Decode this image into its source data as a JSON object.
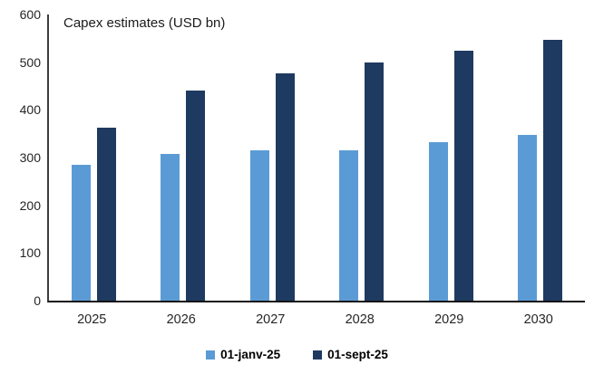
{
  "chart_data": {
    "type": "bar",
    "title": "Capex estimates (USD bn)",
    "categories": [
      "2025",
      "2026",
      "2027",
      "2028",
      "2029",
      "2030"
    ],
    "series": [
      {
        "name": "01-janv-25",
        "color": "#5B9BD5",
        "values": [
          285,
          307,
          316,
          316,
          332,
          348
        ]
      },
      {
        "name": "01-sept-25",
        "color": "#1F3A60",
        "values": [
          363,
          441,
          476,
          500,
          525,
          546
        ]
      }
    ],
    "ylim": [
      0,
      600
    ],
    "yticks": [
      0,
      100,
      200,
      300,
      400,
      500,
      600
    ],
    "xlabel": "",
    "ylabel": "",
    "grid": false,
    "legend_position": "bottom"
  },
  "colors": {
    "y_axis_line": "#3d3d3d",
    "x_axis_line": "#141414",
    "tick_text": "#262626",
    "legend_text": "#000000",
    "background": "#ffffff"
  }
}
